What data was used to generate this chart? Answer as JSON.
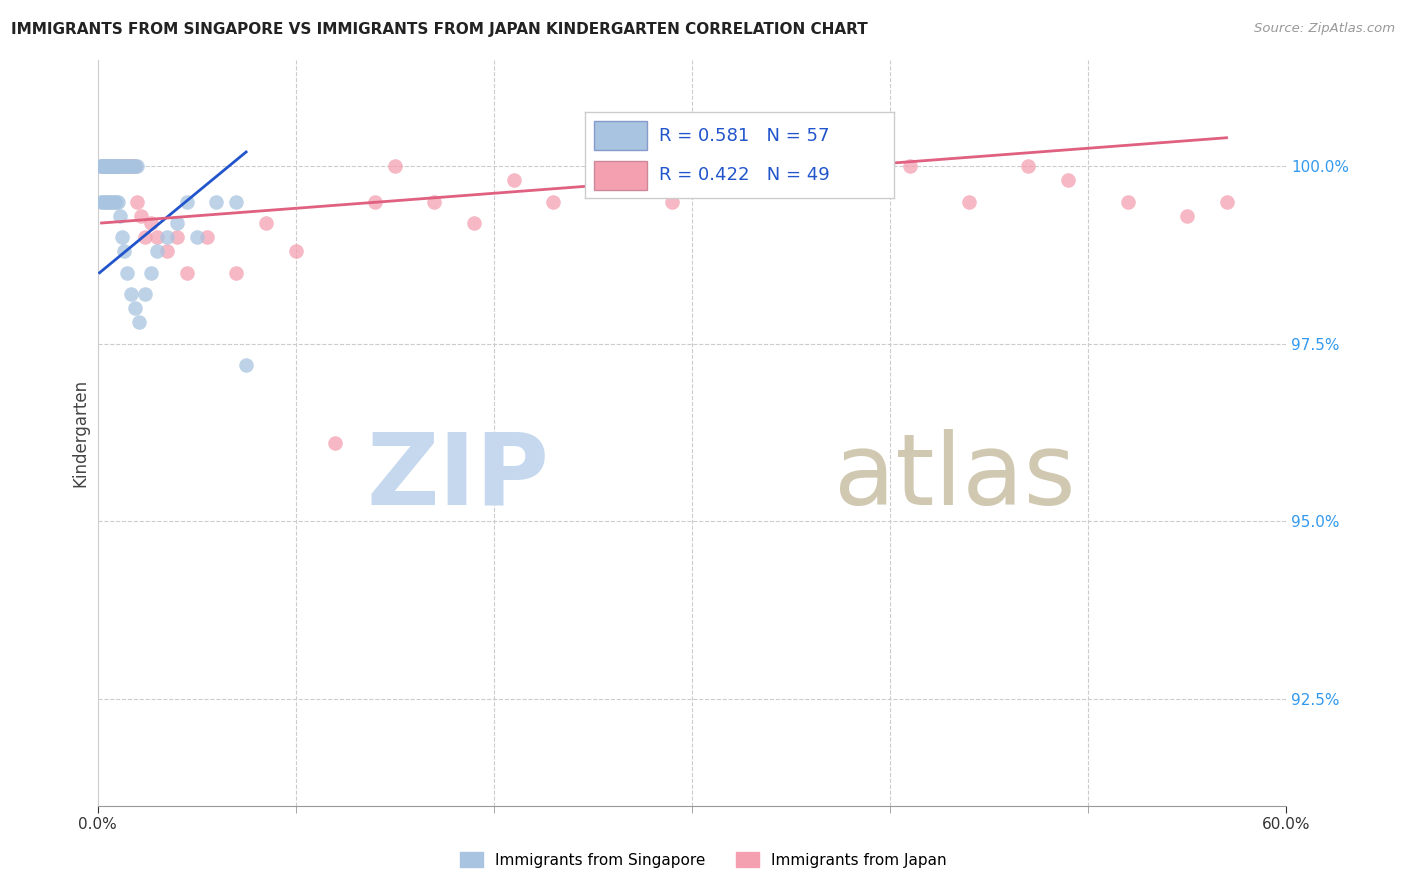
{
  "title": "IMMIGRANTS FROM SINGAPORE VS IMMIGRANTS FROM JAPAN KINDERGARTEN CORRELATION CHART",
  "source": "Source: ZipAtlas.com",
  "ylabel": "Kindergarten",
  "y_ticks": [
    92.5,
    95.0,
    97.5,
    100.0
  ],
  "y_tick_labels": [
    "92.5%",
    "95.0%",
    "97.5%",
    "100.0%"
  ],
  "xlim": [
    0.0,
    60.0
  ],
  "ylim": [
    91.0,
    101.5
  ],
  "singapore_R": 0.581,
  "singapore_N": 57,
  "japan_R": 0.422,
  "japan_N": 49,
  "singapore_color": "#a8c4e0",
  "japan_color": "#f4a0b0",
  "singapore_line_color": "#2255cc",
  "japan_line_color": "#e06080",
  "watermark_zip": "ZIP",
  "watermark_atlas": "atlas",
  "watermark_color_zip": "#c5d8ee",
  "watermark_color_atlas": "#d0c8b0",
  "sg_x": [
    0.1,
    0.2,
    0.2,
    0.3,
    0.3,
    0.4,
    0.4,
    0.5,
    0.5,
    0.6,
    0.6,
    0.7,
    0.7,
    0.8,
    0.8,
    0.9,
    0.9,
    1.0,
    1.0,
    1.1,
    1.1,
    1.2,
    1.3,
    1.4,
    1.5,
    1.6,
    1.7,
    1.8,
    1.9,
    2.0,
    0.15,
    0.25,
    0.35,
    0.45,
    0.55,
    0.65,
    0.75,
    0.85,
    0.95,
    1.05,
    1.15,
    1.25,
    1.35,
    1.5,
    1.7,
    1.9,
    2.1,
    2.4,
    2.7,
    3.0,
    3.5,
    4.0,
    4.5,
    5.0,
    6.0,
    7.0,
    7.5
  ],
  "sg_y": [
    100.0,
    100.0,
    100.0,
    100.0,
    100.0,
    100.0,
    100.0,
    100.0,
    100.0,
    100.0,
    100.0,
    100.0,
    100.0,
    100.0,
    100.0,
    100.0,
    100.0,
    100.0,
    100.0,
    100.0,
    100.0,
    100.0,
    100.0,
    100.0,
    100.0,
    100.0,
    100.0,
    100.0,
    100.0,
    100.0,
    99.5,
    99.5,
    99.5,
    99.5,
    99.5,
    99.5,
    99.5,
    99.5,
    99.5,
    99.5,
    99.3,
    99.0,
    98.8,
    98.5,
    98.2,
    98.0,
    97.8,
    98.2,
    98.5,
    98.8,
    99.0,
    99.2,
    99.5,
    99.0,
    99.5,
    99.5,
    97.2
  ],
  "jp_x": [
    0.2,
    0.3,
    0.5,
    0.6,
    0.7,
    0.8,
    0.9,
    1.0,
    1.1,
    1.2,
    1.3,
    1.4,
    1.5,
    1.6,
    1.7,
    1.8,
    1.9,
    2.0,
    2.2,
    2.4,
    2.7,
    3.0,
    3.5,
    4.0,
    4.5,
    5.5,
    7.0,
    8.5,
    10.0,
    12.0,
    14.0,
    15.0,
    17.0,
    19.0,
    21.0,
    23.0,
    25.0,
    27.0,
    29.0,
    31.0,
    35.0,
    38.0,
    41.0,
    44.0,
    47.0,
    49.0,
    52.0,
    55.0,
    57.0
  ],
  "jp_y": [
    100.0,
    100.0,
    100.0,
    100.0,
    100.0,
    100.0,
    100.0,
    100.0,
    100.0,
    100.0,
    100.0,
    100.0,
    100.0,
    100.0,
    100.0,
    100.0,
    100.0,
    99.5,
    99.3,
    99.0,
    99.2,
    99.0,
    98.8,
    99.0,
    98.5,
    99.0,
    98.5,
    99.2,
    98.8,
    96.1,
    99.5,
    100.0,
    99.5,
    99.2,
    99.8,
    99.5,
    100.0,
    99.8,
    99.5,
    99.8,
    100.0,
    99.8,
    100.0,
    99.5,
    100.0,
    99.8,
    99.5,
    99.3,
    99.5
  ],
  "sg_trend_x": [
    0.1,
    7.5
  ],
  "sg_trend_y": [
    98.5,
    100.2
  ],
  "jp_trend_x": [
    0.2,
    57.0
  ],
  "jp_trend_y": [
    99.2,
    100.4
  ],
  "minor_xticks": [
    10,
    20,
    30,
    40,
    50
  ]
}
